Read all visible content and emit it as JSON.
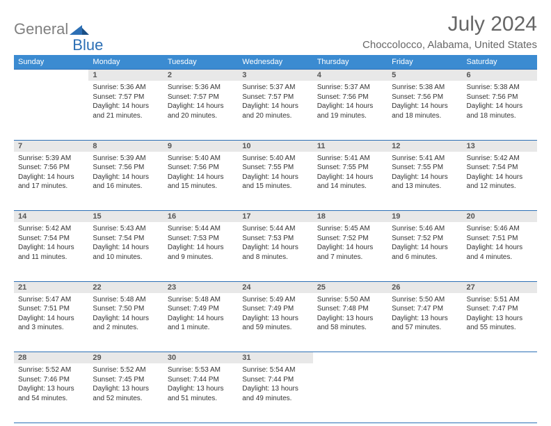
{
  "logo": {
    "general": "General",
    "blue": "Blue"
  },
  "title": "July 2024",
  "subtitle": "Choccolocco, Alabama, United States",
  "colors": {
    "header_bg": "#3b8bd1",
    "header_text": "#ffffff",
    "daynum_bg": "#e8e8e8",
    "border": "#2c6fb5",
    "text": "#333333",
    "title_text": "#666666"
  },
  "columns": [
    "Sunday",
    "Monday",
    "Tuesday",
    "Wednesday",
    "Thursday",
    "Friday",
    "Saturday"
  ],
  "weeks": [
    {
      "daynums": [
        "",
        "1",
        "2",
        "3",
        "4",
        "5",
        "6"
      ],
      "cells": [
        {},
        {
          "sunrise": "Sunrise: 5:36 AM",
          "sunset": "Sunset: 7:57 PM",
          "dayl1": "Daylight: 14 hours",
          "dayl2": "and 21 minutes."
        },
        {
          "sunrise": "Sunrise: 5:36 AM",
          "sunset": "Sunset: 7:57 PM",
          "dayl1": "Daylight: 14 hours",
          "dayl2": "and 20 minutes."
        },
        {
          "sunrise": "Sunrise: 5:37 AM",
          "sunset": "Sunset: 7:57 PM",
          "dayl1": "Daylight: 14 hours",
          "dayl2": "and 20 minutes."
        },
        {
          "sunrise": "Sunrise: 5:37 AM",
          "sunset": "Sunset: 7:56 PM",
          "dayl1": "Daylight: 14 hours",
          "dayl2": "and 19 minutes."
        },
        {
          "sunrise": "Sunrise: 5:38 AM",
          "sunset": "Sunset: 7:56 PM",
          "dayl1": "Daylight: 14 hours",
          "dayl2": "and 18 minutes."
        },
        {
          "sunrise": "Sunrise: 5:38 AM",
          "sunset": "Sunset: 7:56 PM",
          "dayl1": "Daylight: 14 hours",
          "dayl2": "and 18 minutes."
        }
      ]
    },
    {
      "daynums": [
        "7",
        "8",
        "9",
        "10",
        "11",
        "12",
        "13"
      ],
      "cells": [
        {
          "sunrise": "Sunrise: 5:39 AM",
          "sunset": "Sunset: 7:56 PM",
          "dayl1": "Daylight: 14 hours",
          "dayl2": "and 17 minutes."
        },
        {
          "sunrise": "Sunrise: 5:39 AM",
          "sunset": "Sunset: 7:56 PM",
          "dayl1": "Daylight: 14 hours",
          "dayl2": "and 16 minutes."
        },
        {
          "sunrise": "Sunrise: 5:40 AM",
          "sunset": "Sunset: 7:56 PM",
          "dayl1": "Daylight: 14 hours",
          "dayl2": "and 15 minutes."
        },
        {
          "sunrise": "Sunrise: 5:40 AM",
          "sunset": "Sunset: 7:55 PM",
          "dayl1": "Daylight: 14 hours",
          "dayl2": "and 15 minutes."
        },
        {
          "sunrise": "Sunrise: 5:41 AM",
          "sunset": "Sunset: 7:55 PM",
          "dayl1": "Daylight: 14 hours",
          "dayl2": "and 14 minutes."
        },
        {
          "sunrise": "Sunrise: 5:41 AM",
          "sunset": "Sunset: 7:55 PM",
          "dayl1": "Daylight: 14 hours",
          "dayl2": "and 13 minutes."
        },
        {
          "sunrise": "Sunrise: 5:42 AM",
          "sunset": "Sunset: 7:54 PM",
          "dayl1": "Daylight: 14 hours",
          "dayl2": "and 12 minutes."
        }
      ]
    },
    {
      "daynums": [
        "14",
        "15",
        "16",
        "17",
        "18",
        "19",
        "20"
      ],
      "cells": [
        {
          "sunrise": "Sunrise: 5:42 AM",
          "sunset": "Sunset: 7:54 PM",
          "dayl1": "Daylight: 14 hours",
          "dayl2": "and 11 minutes."
        },
        {
          "sunrise": "Sunrise: 5:43 AM",
          "sunset": "Sunset: 7:54 PM",
          "dayl1": "Daylight: 14 hours",
          "dayl2": "and 10 minutes."
        },
        {
          "sunrise": "Sunrise: 5:44 AM",
          "sunset": "Sunset: 7:53 PM",
          "dayl1": "Daylight: 14 hours",
          "dayl2": "and 9 minutes."
        },
        {
          "sunrise": "Sunrise: 5:44 AM",
          "sunset": "Sunset: 7:53 PM",
          "dayl1": "Daylight: 14 hours",
          "dayl2": "and 8 minutes."
        },
        {
          "sunrise": "Sunrise: 5:45 AM",
          "sunset": "Sunset: 7:52 PM",
          "dayl1": "Daylight: 14 hours",
          "dayl2": "and 7 minutes."
        },
        {
          "sunrise": "Sunrise: 5:46 AM",
          "sunset": "Sunset: 7:52 PM",
          "dayl1": "Daylight: 14 hours",
          "dayl2": "and 6 minutes."
        },
        {
          "sunrise": "Sunrise: 5:46 AM",
          "sunset": "Sunset: 7:51 PM",
          "dayl1": "Daylight: 14 hours",
          "dayl2": "and 4 minutes."
        }
      ]
    },
    {
      "daynums": [
        "21",
        "22",
        "23",
        "24",
        "25",
        "26",
        "27"
      ],
      "cells": [
        {
          "sunrise": "Sunrise: 5:47 AM",
          "sunset": "Sunset: 7:51 PM",
          "dayl1": "Daylight: 14 hours",
          "dayl2": "and 3 minutes."
        },
        {
          "sunrise": "Sunrise: 5:48 AM",
          "sunset": "Sunset: 7:50 PM",
          "dayl1": "Daylight: 14 hours",
          "dayl2": "and 2 minutes."
        },
        {
          "sunrise": "Sunrise: 5:48 AM",
          "sunset": "Sunset: 7:49 PM",
          "dayl1": "Daylight: 14 hours",
          "dayl2": "and 1 minute."
        },
        {
          "sunrise": "Sunrise: 5:49 AM",
          "sunset": "Sunset: 7:49 PM",
          "dayl1": "Daylight: 13 hours",
          "dayl2": "and 59 minutes."
        },
        {
          "sunrise": "Sunrise: 5:50 AM",
          "sunset": "Sunset: 7:48 PM",
          "dayl1": "Daylight: 13 hours",
          "dayl2": "and 58 minutes."
        },
        {
          "sunrise": "Sunrise: 5:50 AM",
          "sunset": "Sunset: 7:47 PM",
          "dayl1": "Daylight: 13 hours",
          "dayl2": "and 57 minutes."
        },
        {
          "sunrise": "Sunrise: 5:51 AM",
          "sunset": "Sunset: 7:47 PM",
          "dayl1": "Daylight: 13 hours",
          "dayl2": "and 55 minutes."
        }
      ]
    },
    {
      "daynums": [
        "28",
        "29",
        "30",
        "31",
        "",
        "",
        ""
      ],
      "cells": [
        {
          "sunrise": "Sunrise: 5:52 AM",
          "sunset": "Sunset: 7:46 PM",
          "dayl1": "Daylight: 13 hours",
          "dayl2": "and 54 minutes."
        },
        {
          "sunrise": "Sunrise: 5:52 AM",
          "sunset": "Sunset: 7:45 PM",
          "dayl1": "Daylight: 13 hours",
          "dayl2": "and 52 minutes."
        },
        {
          "sunrise": "Sunrise: 5:53 AM",
          "sunset": "Sunset: 7:44 PM",
          "dayl1": "Daylight: 13 hours",
          "dayl2": "and 51 minutes."
        },
        {
          "sunrise": "Sunrise: 5:54 AM",
          "sunset": "Sunset: 7:44 PM",
          "dayl1": "Daylight: 13 hours",
          "dayl2": "and 49 minutes."
        },
        {},
        {},
        {}
      ]
    }
  ]
}
